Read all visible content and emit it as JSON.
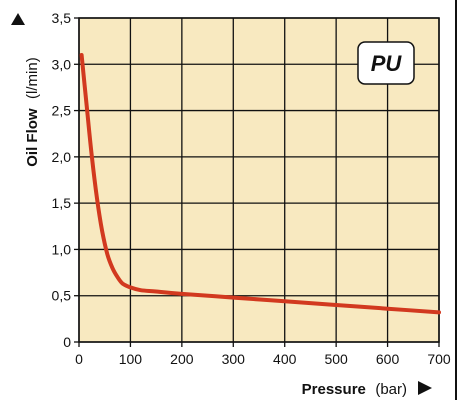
{
  "chart_data": {
    "type": "line",
    "title": "",
    "xlabel": "Pressure",
    "xlabel_unit": "(bar)",
    "ylabel": "Oil Flow",
    "ylabel_unit": "(l/min)",
    "xlim": [
      0,
      700
    ],
    "ylim": [
      0,
      3.5
    ],
    "x_ticks": [
      0,
      100,
      200,
      300,
      400,
      500,
      600,
      700
    ],
    "x_tick_labels": [
      "0",
      "100",
      "200",
      "300",
      "400",
      "500",
      "600",
      "700"
    ],
    "y_ticks": [
      0,
      0.5,
      1.0,
      1.5,
      2.0,
      2.5,
      3.0,
      3.5
    ],
    "y_tick_labels": [
      "0",
      "0,5",
      "1,0",
      "1,5",
      "2,0",
      "2,5",
      "3,0",
      "3,5"
    ],
    "grid": true,
    "badge": "PU",
    "series": [
      {
        "color": "#d2391f",
        "x": [
          5,
          15,
          25,
          35,
          45,
          55,
          65,
          75,
          85,
          100,
          120,
          150,
          200,
          300,
          400,
          500,
          600,
          700
        ],
        "y": [
          3.1,
          2.55,
          2.0,
          1.55,
          1.2,
          0.95,
          0.8,
          0.7,
          0.63,
          0.59,
          0.56,
          0.545,
          0.52,
          0.48,
          0.44,
          0.4,
          0.36,
          0.32
        ]
      }
    ],
    "colors": {
      "plot_background": "#f8e9c0",
      "grid": "#111111",
      "line": "#d2391f"
    }
  }
}
